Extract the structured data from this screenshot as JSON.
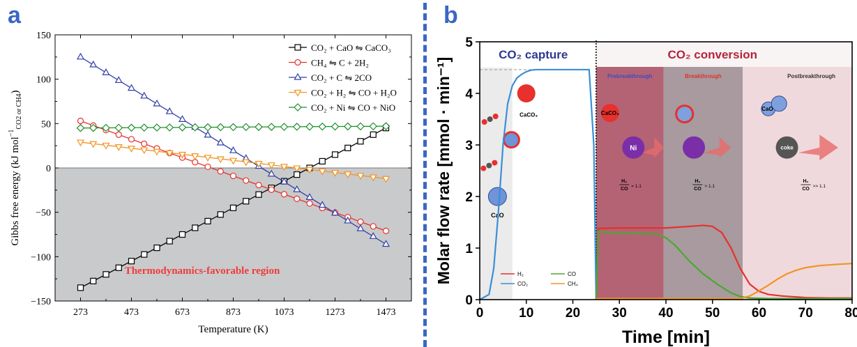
{
  "panels": {
    "a_label": "a",
    "b_label": "b"
  },
  "colors": {
    "panel_letter": "#3b66c4",
    "region_fill": "#c9cacb",
    "region_text": "#ef3b3b",
    "s_caco3": "#000000",
    "s_ch4": "#e8302d",
    "s_co2c": "#2f3fa8",
    "s_rwgs": "#f29420",
    "s_ni": "#1d8f2a",
    "b_capture": "#3a8fd6",
    "b_h2": "#e8302d",
    "b_co": "#4aa832",
    "b_ch4": "#f29420",
    "b_pre": "#a8495e",
    "b_break": "#9a8a8e",
    "b_post": "#eed4d8"
  },
  "chart_data": [
    {
      "type": "line",
      "xlabel": "Temperature (K)",
      "ylabel_main": "Gibbs free energy (kJ mol",
      "ylabel_sup": "−1",
      "ylabel_sub": "CO2 or CH4",
      "ylabel_close": ")",
      "xlim": [
        173,
        1573
      ],
      "ylim": [
        -150,
        150
      ],
      "xticks": [
        273,
        473,
        673,
        873,
        1073,
        1273,
        1473
      ],
      "yticks": [
        -150,
        -100,
        -50,
        0,
        50,
        100,
        150
      ],
      "favorable_region_below": 0,
      "annotation": "Thermodynamics-favorable region",
      "legend_position": "top-right",
      "series": [
        {
          "name": "CO₂ + CaO ⇋ CaCO₃",
          "marker": "square",
          "color": "#000000",
          "x": [
            273,
            1473
          ],
          "y": [
            -135,
            45
          ]
        },
        {
          "name": "CH₄ ⇋ C + 2H₂",
          "marker": "circle",
          "color": "#e8302d",
          "x": [
            273,
            1473
          ],
          "y": [
            53,
            -71
          ]
        },
        {
          "name": "CO₂ + C ⇋ 2CO",
          "marker": "triangle-up",
          "color": "#2f3fa8",
          "x": [
            273,
            1473
          ],
          "y": [
            125,
            -86
          ]
        },
        {
          "name": "CO₂ + H₂ ⇋ CO + H₂O",
          "marker": "triangle-down",
          "color": "#f29420",
          "x": [
            273,
            1473
          ],
          "y": [
            29,
            -12
          ]
        },
        {
          "name": "CO₂ + Ni ⇋ CO + NiO",
          "marker": "diamond",
          "color": "#1d8f2a",
          "x": [
            273,
            1473
          ],
          "y": [
            45,
            47
          ]
        }
      ]
    },
    {
      "type": "line",
      "xlabel": "Time [min]",
      "ylabel": "Molar flow rate [mmol · min⁻¹]",
      "xlim": [
        0,
        80
      ],
      "ylim": [
        0,
        5
      ],
      "xticks": [
        0,
        10,
        20,
        30,
        40,
        50,
        60,
        70,
        80
      ],
      "yticks": [
        0,
        1,
        2,
        3,
        4,
        5
      ],
      "phase_capture": "CO₂ capture",
      "phase_conversion": "CO₂ conversion",
      "stages": [
        {
          "label": "Prebreakthrough",
          "x0": 25,
          "x1": 39.5,
          "color": "#a8495e",
          "label_color": "#3f4bbf"
        },
        {
          "label": "Breakthrough",
          "x0": 39.5,
          "x1": 56.5,
          "color": "#9a8a8e",
          "label_color": "#e0322f"
        },
        {
          "label": "Postbreakthrough",
          "x0": 56.5,
          "x1": 80,
          "color": "#eed4d8",
          "label_color": "#333333"
        }
      ],
      "ratios": [
        "= 1.1",
        "> 1.1",
        ">> 1.1"
      ],
      "ratio_fraction": {
        "num": "H₂",
        "den": "CO"
      },
      "particle_labels": {
        "cao": "CaO",
        "caco3": "CaCO₃",
        "ni": "Ni",
        "coke": "coke",
        "cao2": "CaO",
        "caco3_2": "CaCO₃"
      },
      "legend_entries": [
        "H₂",
        "CO",
        "CO₂",
        "CH₄"
      ],
      "series": [
        {
          "name": "CO₂",
          "color": "#3a8fd6",
          "x": [
            0,
            2,
            3,
            4,
            5,
            6,
            7,
            8,
            9,
            10,
            11,
            12,
            15,
            20,
            23.5,
            24.5,
            25
          ],
          "y": [
            0,
            0.1,
            0.6,
            1.7,
            3.0,
            3.8,
            4.15,
            4.3,
            4.37,
            4.42,
            4.45,
            4.46,
            4.46,
            4.46,
            4.46,
            3.0,
            0
          ]
        },
        {
          "name": "H₂",
          "color": "#e8302d",
          "x": [
            25,
            25.5,
            30,
            35,
            40,
            45,
            48,
            50,
            52,
            54,
            56,
            58,
            60,
            62,
            65,
            70,
            75,
            80
          ],
          "y": [
            0,
            1.38,
            1.39,
            1.39,
            1.39,
            1.42,
            1.44,
            1.42,
            1.3,
            1.0,
            0.6,
            0.3,
            0.16,
            0.1,
            0.07,
            0.04,
            0.03,
            0.03
          ]
        },
        {
          "name": "CO",
          "color": "#4aa832",
          "x": [
            25,
            25.5,
            30,
            35,
            38,
            40,
            42,
            45,
            48,
            51,
            54,
            56,
            58,
            62,
            70,
            80
          ],
          "y": [
            0,
            1.32,
            1.29,
            1.28,
            1.27,
            1.2,
            1.05,
            0.75,
            0.5,
            0.3,
            0.13,
            0.06,
            0.03,
            0.02,
            0.02,
            0.02
          ]
        },
        {
          "name": "CH₄",
          "color": "#f29420",
          "x": [
            25,
            56,
            58,
            60,
            62,
            64,
            66,
            68,
            70,
            73,
            76,
            80
          ],
          "y": [
            0.02,
            0.02,
            0.07,
            0.17,
            0.28,
            0.4,
            0.5,
            0.57,
            0.62,
            0.66,
            0.68,
            0.7
          ]
        }
      ]
    }
  ]
}
